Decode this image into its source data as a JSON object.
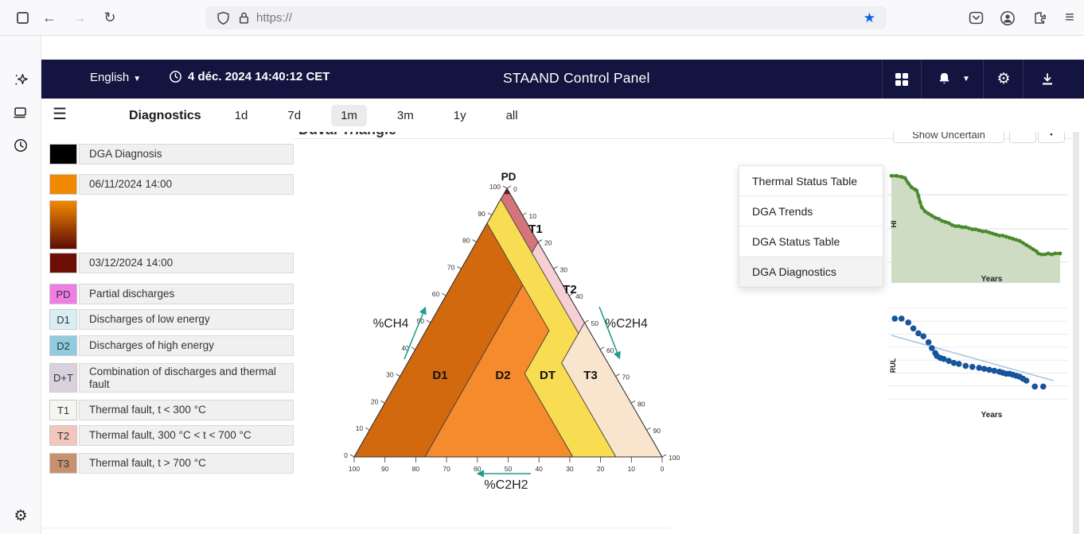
{
  "browser": {
    "url": "https://"
  },
  "side_rail": {
    "icons": [
      "ai-sparkle",
      "devices",
      "history",
      "settings"
    ]
  },
  "header": {
    "language": "English",
    "datetime": "4 déc. 2024 14:40:12 CET",
    "title": "STAAND Control Panel"
  },
  "toolbar": {
    "section": "Diagnostics",
    "ranges": [
      "1d",
      "7d",
      "1m",
      "3m",
      "1y",
      "all"
    ],
    "active_range": "1m"
  },
  "panel": {
    "title_clipped": "Duval Triangle",
    "show_uncertain": "Show Uncertain"
  },
  "legend": {
    "items": [
      {
        "swatch": "#000000",
        "code": "",
        "text": "DGA Diagnosis"
      },
      {
        "swatch": "#f08a00",
        "code": "",
        "text": "06/11/2024 14:00"
      },
      {
        "gradient": [
          "#f08a00",
          "#5e0b06"
        ],
        "code": "",
        "text": null
      },
      {
        "swatch": "#6d0f07",
        "code": "",
        "text": "03/12/2024 14:00"
      },
      {
        "swatch": "#ef7de4",
        "code": "PD",
        "text": "Partial discharges"
      },
      {
        "swatch": "#d8eef5",
        "code": "D1",
        "text": "Discharges of low energy"
      },
      {
        "swatch": "#90cbdf",
        "code": "D2",
        "text": "Discharges of high energy"
      },
      {
        "swatch": "#d9d2de",
        "code": "D+T",
        "text": "Combination of discharges and thermal fault"
      },
      {
        "swatch": "#f6f5f1",
        "code": "T1",
        "text": "Thermal fault, t < 300 °C"
      },
      {
        "swatch": "#f2c6bd",
        "code": "T2",
        "text": "Thermal fault, 300 °C < t < 700 °C"
      },
      {
        "swatch": "#c69170",
        "code": "T3",
        "text": "Thermal fault, t > 700 °C"
      }
    ]
  },
  "menu": {
    "items": [
      "Thermal Status Table",
      "DGA Trends",
      "DGA Status Table",
      "DGA Diagnostics"
    ],
    "active": "DGA Diagnostics"
  },
  "chart_data": [
    {
      "type": "ternary-diagram",
      "name": "duval-triangle",
      "title": "Duval Triangle",
      "axes": {
        "left": "%CH4",
        "right": "%C2H4",
        "bottom": "%C2H2"
      },
      "ticks": [
        0,
        10,
        20,
        30,
        40,
        50,
        60,
        70,
        80,
        90,
        100
      ],
      "arrow_color": "#1e9e8e",
      "regions": [
        {
          "name": "D1",
          "color": "#d2690f",
          "vertices_mae": [
            [
              87,
              13,
              0
            ],
            [
              64,
              13,
              23
            ],
            [
              0,
              77,
              23
            ],
            [
              0,
              100,
              0
            ]
          ],
          "label_xy": [
            133,
            262
          ]
        },
        {
          "name": "D2",
          "color": "#f68b2e",
          "vertices_mae": [
            [
              64,
              13,
              23
            ],
            [
              47,
              13,
              40
            ],
            [
              31,
              29,
              40
            ],
            [
              0,
              29,
              71
            ],
            [
              0,
              77,
              23
            ]
          ],
          "label_xy": [
            212,
            262
          ]
        },
        {
          "name": "DT",
          "color": "#f8dc52",
          "vertices_mae": [
            [
              96,
              4,
              0
            ],
            [
              76,
              4,
              20
            ],
            [
              46,
              4,
              50
            ],
            [
              35,
              15,
              50
            ],
            [
              0,
              15,
              85
            ],
            [
              0,
              29,
              71
            ],
            [
              31,
              29,
              40
            ],
            [
              47,
              13,
              40
            ],
            [
              64,
              13,
              23
            ],
            [
              87,
              13,
              0
            ]
          ],
          "label_xy": [
            268,
            262
          ]
        },
        {
          "name": "T3",
          "color": "#f9e4ce",
          "vertices_mae": [
            [
              50,
              0,
              50
            ],
            [
              0,
              0,
              100
            ],
            [
              0,
              15,
              85
            ],
            [
              35,
              15,
              50
            ],
            [
              46,
              4,
              50
            ]
          ],
          "label_xy": [
            322,
            262
          ]
        },
        {
          "name": "T2",
          "color": "#f6cfd5",
          "vertices_mae": [
            [
              80,
              0,
              20
            ],
            [
              50,
              0,
              50
            ],
            [
              46,
              4,
              50
            ],
            [
              76,
              4,
              20
            ]
          ],
          "label_xy": [
            296,
            154
          ]
        },
        {
          "name": "T1",
          "color": "#d5757b",
          "vertices_mae": [
            [
              98,
              2,
              0
            ],
            [
              98,
              0,
              2
            ],
            [
              80,
              0,
              20
            ],
            [
              76,
              4,
              20
            ],
            [
              96,
              4,
              0
            ]
          ],
          "label_xy": [
            253,
            78
          ]
        },
        {
          "name": "PD",
          "color": "#7e1410",
          "vertices_mae": [
            [
              100,
              0,
              0
            ],
            [
              98,
              2,
              0
            ],
            [
              98,
              0,
              2
            ]
          ],
          "label_xy": [
            219,
            12
          ]
        }
      ]
    },
    {
      "type": "line",
      "name": "health-index-trend",
      "ylabel": "HI",
      "xlabel": "Years",
      "line_color": "#4a8a2c",
      "fill_color": "#cddcc2",
      "points": [
        [
          0,
          93
        ],
        [
          3,
          93
        ],
        [
          6,
          92
        ],
        [
          8,
          91
        ],
        [
          10,
          86
        ],
        [
          12,
          82
        ],
        [
          14,
          80
        ],
        [
          15,
          79
        ],
        [
          16,
          74
        ],
        [
          17,
          68
        ],
        [
          18,
          63
        ],
        [
          20,
          59
        ],
        [
          22,
          57
        ],
        [
          24,
          55
        ],
        [
          26,
          53
        ],
        [
          28,
          52
        ],
        [
          30,
          50
        ],
        [
          32,
          49
        ],
        [
          34,
          48
        ],
        [
          36,
          46
        ],
        [
          38,
          45
        ],
        [
          40,
          45
        ],
        [
          42,
          44
        ],
        [
          44,
          44
        ],
        [
          46,
          43
        ],
        [
          48,
          42
        ],
        [
          50,
          42
        ],
        [
          52,
          41
        ],
        [
          54,
          40
        ],
        [
          56,
          40
        ],
        [
          58,
          39
        ],
        [
          60,
          38
        ],
        [
          62,
          37
        ],
        [
          64,
          36
        ],
        [
          66,
          36
        ],
        [
          68,
          35
        ],
        [
          70,
          34
        ],
        [
          72,
          33
        ],
        [
          74,
          32
        ],
        [
          76,
          31
        ],
        [
          78,
          29
        ],
        [
          80,
          27
        ],
        [
          82,
          25
        ],
        [
          84,
          23
        ],
        [
          86,
          21
        ],
        [
          87,
          19
        ],
        [
          89,
          18
        ],
        [
          91,
          18
        ],
        [
          93,
          19
        ],
        [
          95,
          18
        ],
        [
          97,
          19
        ],
        [
          100,
          19
        ]
      ]
    },
    {
      "type": "scatter",
      "name": "rul-trend",
      "ylabel": "RUL",
      "xlabel": "Years",
      "dot_color": "#16549c",
      "trend_color": "#a9c3e1",
      "points": [
        [
          2,
          88
        ],
        [
          6,
          88
        ],
        [
          10,
          84
        ],
        [
          13,
          78
        ],
        [
          16,
          73
        ],
        [
          19,
          70
        ],
        [
          22,
          64
        ],
        [
          24,
          58
        ],
        [
          26,
          53
        ],
        [
          27,
          50
        ],
        [
          29,
          48
        ],
        [
          31,
          47
        ],
        [
          34,
          45
        ],
        [
          37,
          43
        ],
        [
          40,
          42
        ],
        [
          44,
          40
        ],
        [
          48,
          39
        ],
        [
          52,
          38
        ],
        [
          55,
          37
        ],
        [
          58,
          36
        ],
        [
          61,
          35
        ],
        [
          64,
          34
        ],
        [
          66,
          33
        ],
        [
          68,
          32
        ],
        [
          70,
          32
        ],
        [
          72,
          31
        ],
        [
          74,
          30
        ],
        [
          76,
          29
        ],
        [
          78,
          27
        ],
        [
          80,
          25
        ],
        [
          85,
          19
        ],
        [
          90,
          19
        ]
      ],
      "trend": [
        [
          0,
          71
        ],
        [
          96,
          25
        ]
      ]
    }
  ]
}
